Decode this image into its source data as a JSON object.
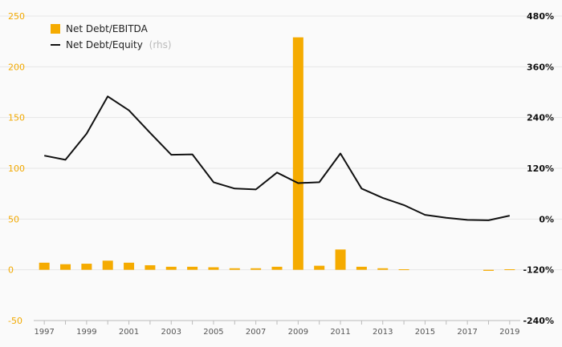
{
  "chart_data": {
    "type": "bar+line",
    "categories": [
      "1997",
      "1998",
      "1999",
      "2000",
      "2001",
      "2002",
      "2003",
      "2004",
      "2005",
      "2006",
      "2007",
      "2008",
      "2009",
      "2010",
      "2011",
      "2012",
      "2013",
      "2014",
      "2015",
      "2016",
      "2017",
      "2018",
      "2019"
    ],
    "x_tick_labels": [
      "1997",
      "1999",
      "2001",
      "2003",
      "2005",
      "2007",
      "2009",
      "2011",
      "2013",
      "2015",
      "2017",
      "2019"
    ],
    "series": [
      {
        "name": "Net Debt/EBITDA",
        "type": "bar",
        "axis": "left",
        "color": "#f5ab00",
        "values": [
          7,
          5.5,
          6,
          9,
          7,
          4.5,
          3,
          3,
          2.5,
          1.5,
          1.5,
          3,
          229,
          4,
          20,
          3,
          1.5,
          0.5,
          0,
          0,
          0,
          -1,
          0.5
        ]
      },
      {
        "name": "Net Debt/Equity",
        "name_suffix": "(rhs)",
        "type": "line",
        "axis": "right",
        "color": "#111111",
        "values": [
          150,
          140,
          202,
          290,
          257,
          204,
          152,
          153,
          87,
          72,
          70,
          110,
          85,
          87,
          155,
          72,
          50,
          33,
          10,
          3,
          -2,
          -3,
          8
        ]
      }
    ],
    "y_left": {
      "min": -50,
      "max": 250,
      "ticks": [
        "-50",
        "0",
        "50",
        "100",
        "150",
        "200",
        "250"
      ],
      "color": "#f2a900"
    },
    "y_right": {
      "min": -240,
      "max": 480,
      "ticks": [
        "-240%",
        "-120%",
        "0%",
        "120%",
        "240%",
        "360%",
        "480%"
      ]
    },
    "grid": true,
    "legend_position": "top-left"
  }
}
